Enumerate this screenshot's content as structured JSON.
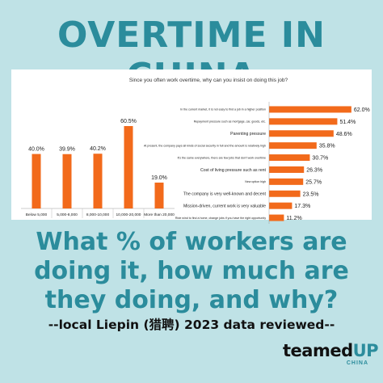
{
  "title": "OVERTIME IN CHINA",
  "headline": "What % of workers are doing it, how much are they doing, and why?",
  "subline": "--local Liepin (猎聘) 2023 data reviewed--",
  "logo": {
    "part1": "teamed",
    "part2": "UP",
    "sub": "CHINA"
  },
  "colors": {
    "accent": "#2b8c9c",
    "bar": "#f26a1b",
    "background": "#bfe2e6"
  },
  "chart_data": [
    {
      "type": "bar",
      "categories": [
        "Below 5,000",
        "5,000-8,000",
        "8,000-10,000",
        "10,000-20,000",
        "More than 20,000"
      ],
      "values": [
        40.0,
        39.9,
        40.2,
        60.5,
        19.0
      ],
      "value_labels": [
        "40.0%",
        "39.9%",
        "40.2%",
        "60.5%",
        "19.0%"
      ],
      "ylim": [
        0,
        70
      ]
    },
    {
      "type": "bar",
      "orientation": "horizontal",
      "title": "Since you often work overtime, why can you insist on doing this job?",
      "categories": [
        "In the current market, it is not easy to find a job in a higher position",
        "Repayment pressure such as mortgage, car, goods, etc.",
        "Parenting pressure",
        "At present, the company pays all kinds of social security in full and the amount is relatively high",
        "It's the same everywhere, there are few jobs that don't work overtime",
        "Cost of living pressure such as rent",
        "New option high",
        "The company is very well-known and decent",
        "Mission-driven, current work is very valuable",
        "Ride wind to find a home, change jobs if you have the right opportunity"
      ],
      "values": [
        62.0,
        51.4,
        48.6,
        35.8,
        30.7,
        26.3,
        25.7,
        23.5,
        17.3,
        11.2
      ],
      "value_labels": [
        "62.0%",
        "51.4%",
        "48.6%",
        "35.8%",
        "30.7%",
        "26.3%",
        "25.7%",
        "23.5%",
        "17.3%",
        "11.2%"
      ],
      "xlim": [
        0,
        70
      ]
    }
  ]
}
